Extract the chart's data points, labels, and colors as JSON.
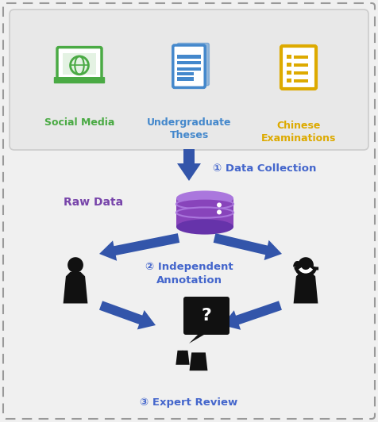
{
  "bg_color": "#f0f0f0",
  "dashed_border_color": "#999999",
  "top_box_color": "#e5e5e5",
  "top_box_border": "#cccccc",
  "green": "#4aaa44",
  "blue": "#4488cc",
  "gold": "#ddaa00",
  "purple": "#7744aa",
  "arrow_blue": "#3355aa",
  "step_blue": "#4466cc",
  "black": "#111111",
  "white": "#ffffff",
  "step1_label": "① Data Collection",
  "step2_label": "② Independent\nAnnotation",
  "step3_label": "③ Expert Review",
  "rawdata_label": "Raw Data",
  "social_label": "Social Media",
  "thesis_label": "Undergraduate\nTheses",
  "exam_label": "Chinese\nExaminations"
}
